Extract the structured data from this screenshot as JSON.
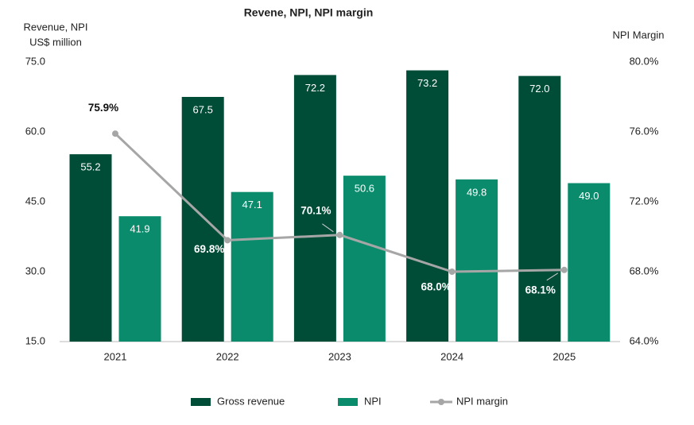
{
  "chart_data": {
    "type": "bar",
    "title": "Revene, NPI, NPI margin",
    "y_label": [
      "Revenue, NPI",
      "US$ million"
    ],
    "y2_label": "NPI Margin",
    "categories": [
      "2021",
      "2022",
      "2023",
      "2024",
      "2025"
    ],
    "series": [
      {
        "name": "Gross revenue",
        "color": "#004d37",
        "values": [
          55.2,
          67.5,
          72.2,
          73.2,
          72.0
        ],
        "value_labels": [
          "55.2",
          "67.5",
          "72.2",
          "73.2",
          "72.0"
        ]
      },
      {
        "name": "NPI",
        "color": "#0a8c6c",
        "values": [
          41.9,
          47.1,
          50.6,
          49.8,
          49.0
        ],
        "value_labels": [
          "41.9",
          "47.1",
          "50.6",
          "49.8",
          "49.0"
        ]
      },
      {
        "name": "NPI margin",
        "type": "line",
        "axis": "y2",
        "color": "#a6a6a6",
        "values": [
          75.9,
          69.8,
          70.1,
          68.0,
          68.1
        ],
        "value_labels": [
          "75.9%",
          "69.8%",
          "70.1%",
          "68.0%",
          "68.1%"
        ]
      }
    ],
    "ylim": [
      15,
      75
    ],
    "yticks": [
      {
        "value": 15,
        "label": "15.0"
      },
      {
        "value": 30,
        "label": "30.0"
      },
      {
        "value": 45,
        "label": "45.0"
      },
      {
        "value": 60,
        "label": "60.0"
      },
      {
        "value": 75,
        "label": "75.0"
      }
    ],
    "y2lim": [
      64,
      80
    ],
    "y2ticks": [
      {
        "value": 64,
        "label": "64.0%"
      },
      {
        "value": 68,
        "label": "68.0%"
      },
      {
        "value": 72,
        "label": "72.0%"
      },
      {
        "value": 76,
        "label": "76.0%"
      },
      {
        "value": 80,
        "label": "80.0%"
      }
    ]
  }
}
